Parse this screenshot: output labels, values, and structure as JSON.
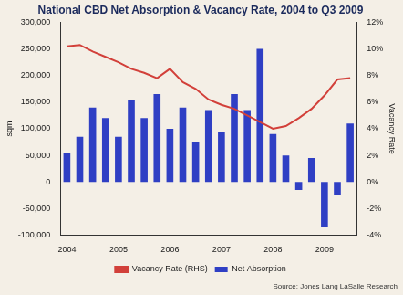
{
  "chart_data": {
    "type": "bar",
    "title": "National CBD Net Absorption & Vacancy Rate, 2004 to Q3 2009",
    "annotations": [
      "Source: Jones Lang LaSalle Research"
    ],
    "categories": [
      "2004",
      null,
      null,
      null,
      "2005",
      null,
      null,
      null,
      "2006",
      null,
      null,
      null,
      "2007",
      null,
      null,
      null,
      "2008",
      null,
      null,
      null,
      "2009",
      null,
      null
    ],
    "series": [
      {
        "name": "Net Absorption",
        "type": "bar",
        "color": "#2f3fc4",
        "values": [
          55000,
          85000,
          140000,
          120000,
          85000,
          155000,
          120000,
          165000,
          100000,
          140000,
          75000,
          135000,
          95000,
          165000,
          135000,
          250000,
          90000,
          50000,
          -15000,
          45000,
          -85000,
          -25000,
          110000
        ]
      },
      {
        "name": "Vacancy Rate (RHS)",
        "type": "line",
        "color": "#d2403a",
        "axis": "y2",
        "values": [
          10.2,
          10.3,
          9.8,
          9.4,
          9.0,
          8.5,
          8.2,
          7.8,
          8.5,
          7.5,
          7.0,
          6.2,
          5.8,
          5.5,
          5.0,
          4.5,
          4.0,
          4.2,
          4.8,
          5.5,
          6.5,
          7.7,
          7.8
        ]
      }
    ],
    "y_label": "sqm",
    "y2_label": "Vacancy Rate",
    "ylim": [
      -100000,
      300000
    ],
    "yticks": [
      {
        "value": -100000,
        "label": "-100,000"
      },
      {
        "value": -50000,
        "label": "-50,000"
      },
      0,
      {
        "value": 50000,
        "label": "50,000"
      },
      {
        "value": 100000,
        "label": "100,000"
      },
      {
        "value": 150000,
        "label": "150,000"
      },
      {
        "value": 200000,
        "label": "200,000"
      },
      {
        "value": 250000,
        "label": "250,000"
      },
      {
        "value": 300000,
        "label": "300,000"
      }
    ],
    "y2lim": [
      -4,
      12
    ],
    "y2ticks": [
      {
        "value": -4,
        "label": "-4%"
      },
      {
        "value": -2,
        "label": "-2%"
      },
      {
        "value": 0,
        "label": "0%"
      },
      {
        "value": 2,
        "label": "2%"
      },
      {
        "value": 4,
        "label": "4%"
      },
      {
        "value": 6,
        "label": "6%"
      },
      {
        "value": 8,
        "label": "8%"
      },
      {
        "value": 10,
        "label": "10%"
      },
      {
        "value": 12,
        "label": "12%"
      }
    ],
    "grid": false,
    "legend": "bottom"
  }
}
